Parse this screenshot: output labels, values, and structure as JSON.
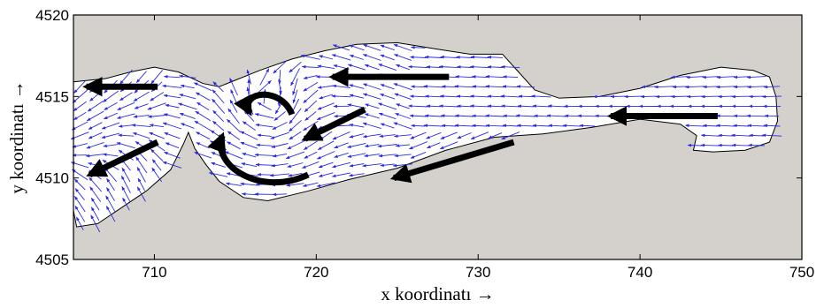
{
  "chart_data": {
    "type": "quiver",
    "xlabel": "x koordinatı  →",
    "ylabel": "y koordinatı  →",
    "xlim": [
      705,
      750
    ],
    "ylim": [
      4505,
      4520
    ],
    "xticks": [
      710,
      720,
      730,
      740,
      750
    ],
    "yticks": [
      4505,
      4510,
      4515,
      4520
    ],
    "colors": {
      "land": "#d4d1cc",
      "water": "#ffffff",
      "vectors": "#2a2ae6",
      "flow_arrows": "#000000"
    },
    "domain_outline": [
      [
        705,
        4515.9
      ],
      [
        707,
        4516.1
      ],
      [
        708.5,
        4516.5
      ],
      [
        710,
        4516.8
      ],
      [
        711.5,
        4516.5
      ],
      [
        713,
        4515.8
      ],
      [
        714,
        4515.6
      ],
      [
        715,
        4516.0
      ],
      [
        716.5,
        4516.6
      ],
      [
        718.5,
        4517.3
      ],
      [
        720.5,
        4517.8
      ],
      [
        722.5,
        4518.2
      ],
      [
        725,
        4518.3
      ],
      [
        727.5,
        4517.9
      ],
      [
        729.5,
        4517.6
      ],
      [
        731.5,
        4517.6
      ],
      [
        732.5,
        4516.5
      ],
      [
        733.5,
        4515.4
      ],
      [
        735,
        4514.9
      ],
      [
        737.5,
        4515.0
      ],
      [
        740,
        4515.5
      ],
      [
        742.5,
        4516.3
      ],
      [
        745,
        4516.8
      ],
      [
        747,
        4516.6
      ],
      [
        748,
        4516.2
      ],
      [
        748.4,
        4515.0
      ],
      [
        748.5,
        4513.5
      ],
      [
        748,
        4512.2
      ],
      [
        746.5,
        4511.7
      ],
      [
        744.5,
        4511.6
      ],
      [
        743.3,
        4511.7
      ],
      [
        743.5,
        4512.6
      ],
      [
        742.5,
        4513.3
      ],
      [
        740,
        4513.6
      ],
      [
        737,
        4513.1
      ],
      [
        734,
        4512.7
      ],
      [
        731,
        4512.5
      ],
      [
        728,
        4511.7
      ],
      [
        725,
        4510.6
      ],
      [
        722,
        4509.9
      ],
      [
        719.5,
        4509.2
      ],
      [
        717,
        4508.6
      ],
      [
        715.5,
        4508.8
      ],
      [
        714,
        4509.8
      ],
      [
        713.2,
        4510.8
      ],
      [
        712.5,
        4511.8
      ],
      [
        712.1,
        4512.8
      ],
      [
        711.8,
        4512.1
      ],
      [
        711,
        4510.5
      ],
      [
        709.5,
        4509.2
      ],
      [
        708,
        4508.2
      ],
      [
        706.5,
        4507.2
      ],
      [
        705.2,
        4507.0
      ],
      [
        705,
        4508.0
      ]
    ],
    "flow_arrows": [
      {
        "from": [
          710.2,
          4515.6
        ],
        "to": [
          705.8,
          4515.6
        ]
      },
      {
        "from": [
          710.2,
          4512.2
        ],
        "to": [
          706.0,
          4510.2
        ]
      },
      {
        "from": [
          728.2,
          4516.2
        ],
        "to": [
          721.0,
          4516.2
        ]
      },
      {
        "from": [
          723.0,
          4514.2
        ],
        "to": [
          719.3,
          4512.4
        ]
      },
      {
        "from": [
          732.2,
          4512.2
        ],
        "to": [
          724.8,
          4510.0
        ]
      },
      {
        "from": [
          744.8,
          4513.8
        ],
        "to": [
          738.2,
          4513.8
        ]
      },
      {
        "curve": [
          [
            718.5,
            4513.9
          ],
          [
            717.8,
            4515.7
          ],
          [
            715.2,
            4515.3
          ],
          [
            715.9,
            4514.0
          ]
        ]
      },
      {
        "curve": [
          [
            719.5,
            4510.2
          ],
          [
            716.5,
            4508.8
          ],
          [
            713.5,
            4510.8
          ],
          [
            714.2,
            4512.6
          ]
        ]
      }
    ]
  }
}
